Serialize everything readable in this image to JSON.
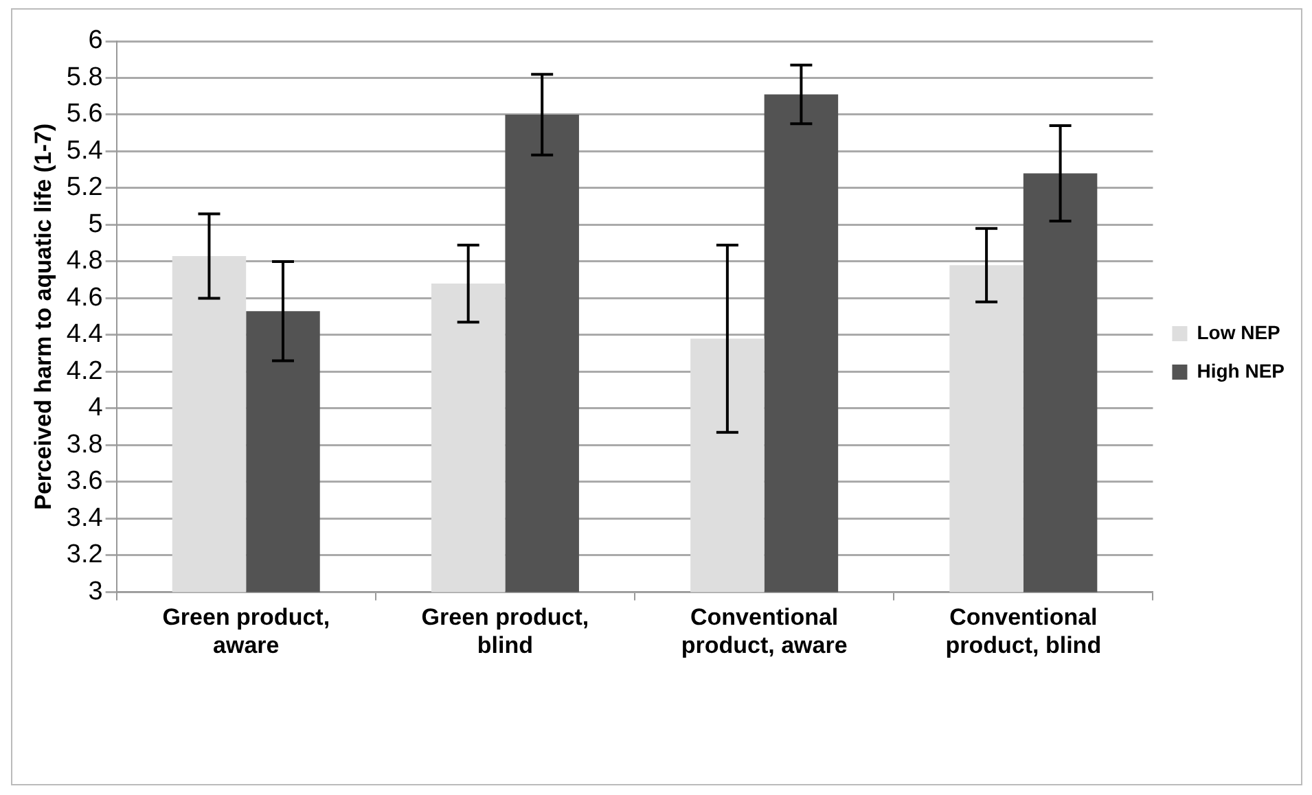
{
  "chart_data": {
    "type": "bar",
    "ylabel": "Perceived harm to aquatic life (1-7)",
    "categories": [
      "Green product, aware",
      "Green product, blind",
      "Conventional product, aware",
      "Conventional product, blind"
    ],
    "series": [
      {
        "name": "Low NEP",
        "color": "#dedede",
        "values": [
          4.83,
          4.68,
          4.38,
          4.78
        ],
        "errors": [
          0.23,
          0.21,
          0.51,
          0.2
        ]
      },
      {
        "name": "High NEP",
        "color": "#535353",
        "values": [
          4.53,
          5.6,
          5.71,
          5.28
        ],
        "errors": [
          0.27,
          0.22,
          0.16,
          0.26
        ]
      }
    ],
    "ylim": [
      3,
      6
    ],
    "yticks": [
      3,
      3.2,
      3.4,
      3.6,
      3.8,
      4,
      4.2,
      4.4,
      4.6,
      4.8,
      5,
      5.2,
      5.4,
      5.6,
      5.8,
      6
    ],
    "grid": "y",
    "legend": "right"
  }
}
